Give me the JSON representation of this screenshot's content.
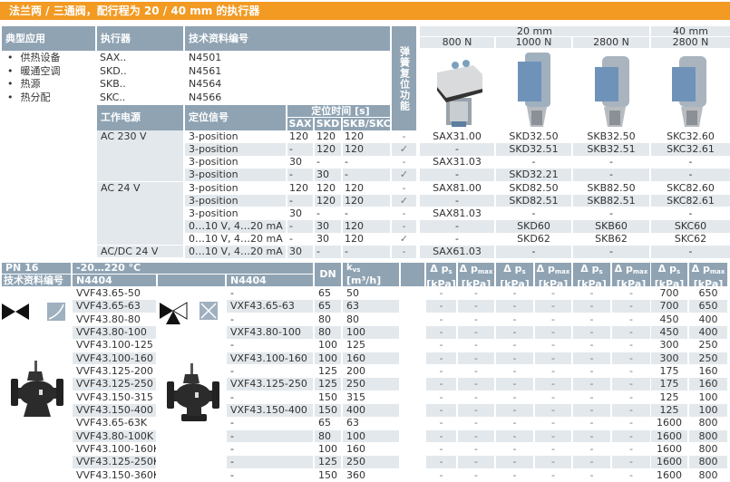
{
  "title": "法兰两 / 三通阀，配行程为 20 / 40 mm 的执行器",
  "colors": {
    "accent": "#f29a22",
    "header": "#8fa3b3",
    "row_shade": "#e3e8ec"
  },
  "top": {
    "headers": {
      "application": "典型应用",
      "actuator": "执行器",
      "datasheet": "技术资料编号",
      "spring_return": "弹簧复位功能",
      "stroke_20": "20 mm",
      "stroke_40": "40 mm",
      "forces": [
        "800 N",
        "1000 N",
        "2800 N",
        "2800 N"
      ],
      "power": "工作电源",
      "signal": "定位信号",
      "positioning_time": "定位时间 [s]",
      "time_cols": [
        "SAX",
        "SKD",
        "SKB/SKC"
      ]
    },
    "applications": [
      "供热设备",
      "暖通空调",
      "热源",
      "热分配"
    ],
    "actuators": [
      {
        "type": "SAX..",
        "doc": "N4501"
      },
      {
        "type": "SKD..",
        "doc": "N4561"
      },
      {
        "type": "SKB..",
        "doc": "N4564"
      },
      {
        "type": "SKC..",
        "doc": "N4566"
      }
    ],
    "power_groups": [
      {
        "label": "AC 230 V",
        "rows": 4
      },
      {
        "label": "AC 24 V",
        "rows": 5
      },
      {
        "label": "AC/DC 24 V",
        "rows": 1
      }
    ],
    "rows": [
      [
        "3-position",
        "120",
        "120",
        "120",
        "-",
        "SAX31.00",
        "SKD32.50",
        "SKB32.50",
        "SKC32.60"
      ],
      [
        "3-position",
        "-",
        "120",
        "120",
        "✓",
        "-",
        "SKD32.51",
        "SKB32.51",
        "SKC32.61"
      ],
      [
        "3-position",
        "30",
        "-",
        "-",
        "-",
        "SAX31.03",
        "-",
        "-",
        "-"
      ],
      [
        "3-position",
        "-",
        "30",
        "-",
        "✓",
        "-",
        "SKD32.21",
        "-",
        "-"
      ],
      [
        "3-position",
        "120",
        "120",
        "120",
        "-",
        "SAX81.00",
        "SKD82.50",
        "SKB82.50",
        "SKC82.60"
      ],
      [
        "3-position",
        "-",
        "120",
        "120",
        "✓",
        "-",
        "SKD82.51",
        "SKB82.51",
        "SKC82.61"
      ],
      [
        "3-position",
        "30",
        "-",
        "-",
        "-",
        "SAX81.03",
        "-",
        "-",
        "-"
      ],
      [
        "0…10 V, 4…20 mA",
        "-",
        "30",
        "120",
        "-",
        "-",
        "SKD60",
        "SKB60",
        "SKC60"
      ],
      [
        "0…10 V, 4…20 mA",
        "-",
        "30",
        "120",
        "✓",
        "-",
        "SKD62",
        "SKB62",
        "SKC62"
      ],
      [
        "0…10 V, 4…20 mA",
        "30",
        "-",
        "-",
        "-",
        "SAX61.03",
        "-",
        "-",
        "-"
      ]
    ]
  },
  "bottom": {
    "headers": {
      "pn": "PN 16",
      "temp": "-20…220 °C",
      "datasheet": "技术资料编号",
      "doc_2way": "N4404",
      "doc_3way": "N4404",
      "dn": "DN",
      "kvs": "kvs",
      "kvs_unit": "[m³/h]",
      "dp_cols": [
        "Δps",
        "Δpmax",
        "Δps",
        "Δpmax",
        "Δps",
        "Δpmax",
        "Δps",
        "Δpmax"
      ],
      "dp_unit": "[kPa]"
    },
    "rows": [
      [
        "VVF43.65-50",
        "-",
        "65",
        "50",
        "-",
        "-",
        "-",
        "-",
        "-",
        "-",
        "700",
        "650"
      ],
      [
        "VVF43.65-63",
        "VXF43.65-63",
        "65",
        "63",
        "-",
        "-",
        "-",
        "-",
        "-",
        "-",
        "700",
        "650"
      ],
      [
        "VVF43.80-80",
        "-",
        "80",
        "80",
        "-",
        "-",
        "-",
        "-",
        "-",
        "-",
        "450",
        "400"
      ],
      [
        "VVF43.80-100",
        "VXF43.80-100",
        "80",
        "100",
        "-",
        "-",
        "-",
        "-",
        "-",
        "-",
        "450",
        "400"
      ],
      [
        "VVF43.100-125",
        "-",
        "100",
        "125",
        "-",
        "-",
        "-",
        "-",
        "-",
        "-",
        "300",
        "250"
      ],
      [
        "VVF43.100-160",
        "VXF43.100-160",
        "100",
        "160",
        "-",
        "-",
        "-",
        "-",
        "-",
        "-",
        "300",
        "250"
      ],
      [
        "VVF43.125-200",
        "-",
        "125",
        "200",
        "-",
        "-",
        "-",
        "-",
        "-",
        "-",
        "175",
        "160"
      ],
      [
        "VVF43.125-250",
        "VXF43.125-250",
        "125",
        "250",
        "-",
        "-",
        "-",
        "-",
        "-",
        "-",
        "175",
        "160"
      ],
      [
        "VVF43.150-315",
        "-",
        "150",
        "315",
        "-",
        "-",
        "-",
        "-",
        "-",
        "-",
        "125",
        "100"
      ],
      [
        "VVF43.150-400",
        "VXF43.150-400",
        "150",
        "400",
        "-",
        "-",
        "-",
        "-",
        "-",
        "-",
        "125",
        "100"
      ],
      [
        "VVF43.65-63K",
        "-",
        "65",
        "63",
        "-",
        "-",
        "-",
        "-",
        "-",
        "-",
        "1600",
        "800"
      ],
      [
        "VVF43.80-100K",
        "-",
        "80",
        "100",
        "-",
        "-",
        "-",
        "-",
        "-",
        "-",
        "1600",
        "800"
      ],
      [
        "VVF43.100-160K",
        "-",
        "100",
        "160",
        "-",
        "-",
        "-",
        "-",
        "-",
        "-",
        "1600",
        "800"
      ],
      [
        "VVF43.125-250K",
        "-",
        "125",
        "250",
        "-",
        "-",
        "-",
        "-",
        "-",
        "-",
        "1600",
        "800"
      ],
      [
        "VVF43.150-360K",
        "-",
        "150",
        "360",
        "-",
        "-",
        "-",
        "-",
        "-",
        "-",
        "1600",
        "800"
      ]
    ]
  }
}
